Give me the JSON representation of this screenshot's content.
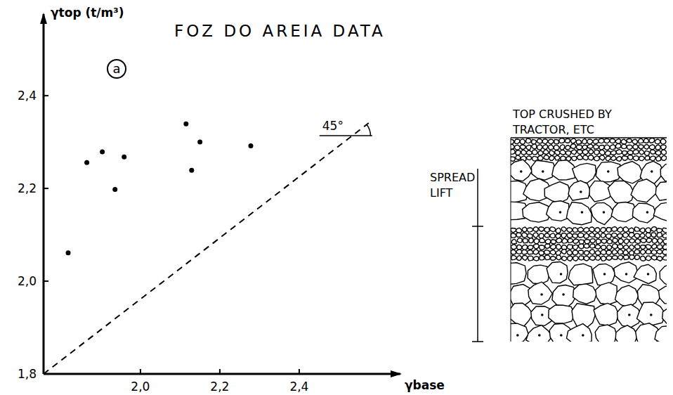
{
  "chart_data": {
    "type": "scatter",
    "title": "FOZ DO AREIA DATA",
    "panel_label": "a",
    "x_label": "γbase",
    "y_label": "γtop (t/m³)",
    "x": [
      1.818,
      1.865,
      1.904,
      1.959,
      1.936,
      2.115,
      2.15,
      2.129,
      2.278
    ],
    "values": [
      2.061,
      2.256,
      2.279,
      2.268,
      2.198,
      2.339,
      2.3,
      2.239,
      2.292
    ],
    "color": "#000000",
    "marker": "circle",
    "grid": false,
    "xlim": [
      1.756,
      2.655
    ],
    "ylim": [
      1.8,
      2.576
    ],
    "xticks": [
      {
        "value": 2.0,
        "label": "2,0"
      },
      {
        "value": 2.2,
        "label": "2,2"
      },
      {
        "value": 2.4,
        "label": "2,4"
      }
    ],
    "yticks": [
      {
        "value": 1.8,
        "label": "1,8"
      },
      {
        "value": 2.0,
        "label": "2,0"
      },
      {
        "value": 2.2,
        "label": "2,2"
      },
      {
        "value": 2.4,
        "label": "2,4"
      }
    ],
    "reference_line": {
      "x": [
        1.756,
        2.575
      ],
      "y": [
        1.8,
        2.341
      ],
      "label": "45°"
    }
  },
  "diagram": {
    "top_label_lines": [
      "TOP CRUSHED BY",
      "TRACTOR, ETC"
    ],
    "lift_label_lines": [
      "SPREAD",
      "LIFT"
    ]
  }
}
